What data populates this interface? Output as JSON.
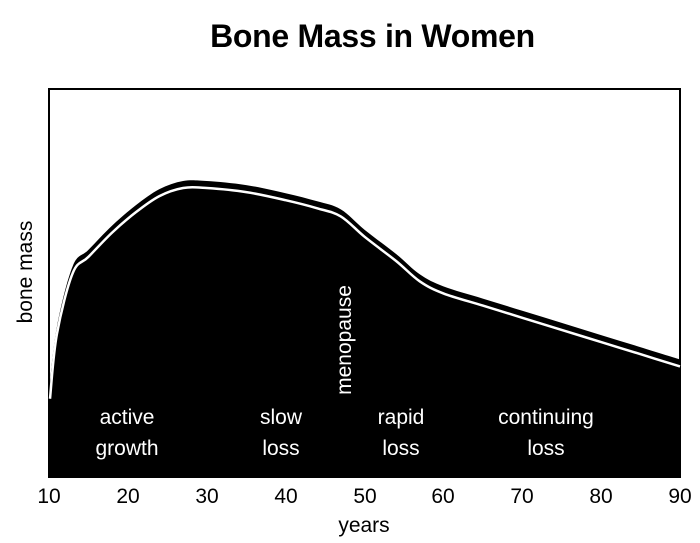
{
  "chart_data": {
    "type": "area",
    "title": "Bone Mass in Women",
    "xlabel": "years",
    "ylabel": "bone mass",
    "xlim": [
      10,
      90
    ],
    "ylim": [
      0,
      100
    ],
    "xticks": [
      10,
      20,
      30,
      40,
      50,
      60,
      70,
      80,
      90
    ],
    "grid": false,
    "legend": null,
    "series": [
      {
        "name": "bone mass",
        "x": [
          10,
          11,
          13,
          15,
          18,
          21,
          24,
          27,
          30,
          35,
          40,
          44,
          47,
          50,
          54,
          57,
          60,
          65,
          70,
          75,
          80,
          85,
          90
        ],
        "values": [
          21,
          37,
          52,
          56,
          62,
          67,
          71,
          73,
          73,
          72,
          70,
          68,
          66,
          61,
          55,
          50,
          47,
          44,
          41,
          38,
          35,
          32,
          29
        ]
      }
    ],
    "annotations": [
      {
        "text": "menopause",
        "x": 48,
        "orientation": "vertical"
      },
      {
        "text": "active growth",
        "x": 20
      },
      {
        "text": "slow loss",
        "x": 39
      },
      {
        "text": "rapid loss",
        "x": 54
      },
      {
        "text": "continuing loss",
        "x": 71
      }
    ]
  },
  "labels": {
    "title": "Bone Mass in Women",
    "xlabel": "years",
    "ylabel": "bone mass",
    "ticks": [
      "10",
      "20",
      "30",
      "40",
      "50",
      "60",
      "70",
      "80",
      "90"
    ],
    "phases": [
      {
        "line1": "active",
        "line2": "growth"
      },
      {
        "line1": "slow",
        "line2": "loss"
      },
      {
        "line1": "rapid",
        "line2": "loss"
      },
      {
        "line1": "continuing",
        "line2": "loss"
      }
    ],
    "menopause": "menopause"
  },
  "colors": {
    "fill": "#000000",
    "highlight_line": "#ffffff",
    "frame": "#000000",
    "background": "#ffffff"
  }
}
